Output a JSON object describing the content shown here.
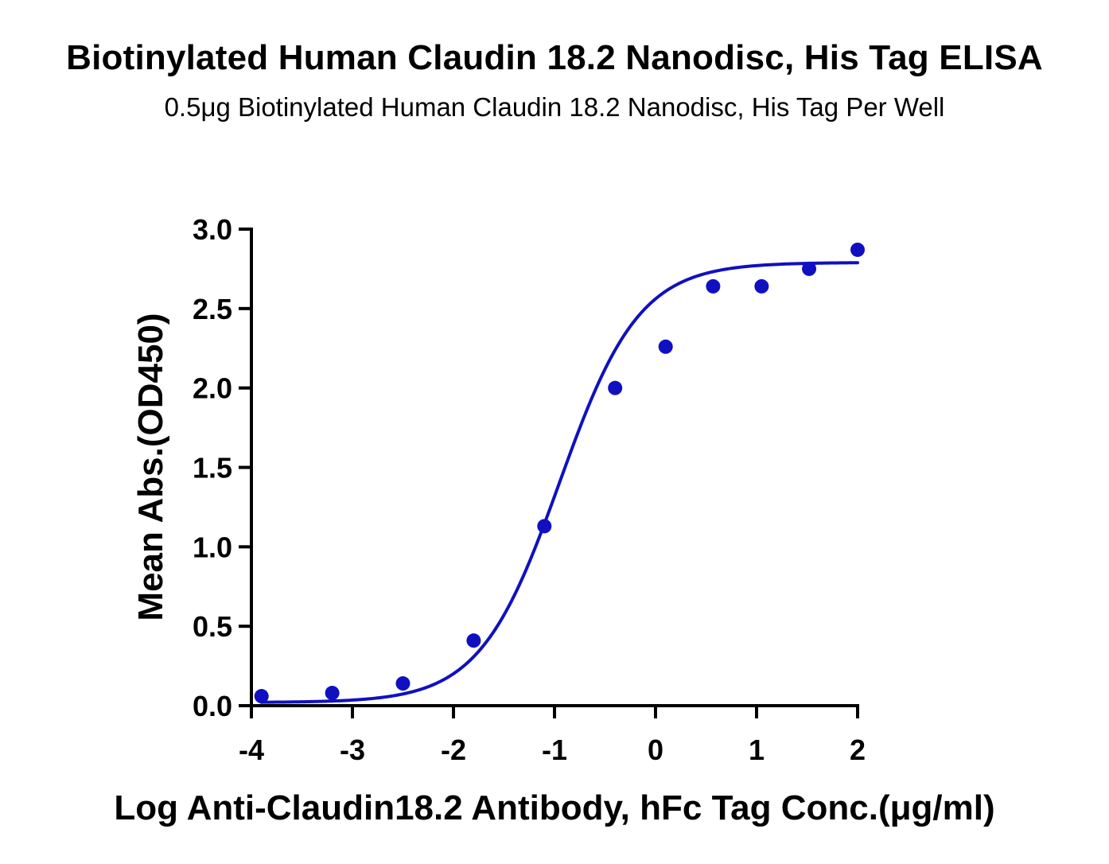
{
  "chart_data": {
    "type": "scatter",
    "title": "Biotinylated Human Claudin 18.2 Nanodisc, His Tag ELISA",
    "subtitle": "0.5μg Biotinylated Human Claudin 18.2 Nanodisc, His Tag Per Well",
    "xlabel": "Log Anti-Claudin18.2 Antibody, hFc Tag Conc.(μg/ml)",
    "ylabel": "Mean Abs.(OD450)",
    "xlim": [
      -4,
      2
    ],
    "ylim": [
      0,
      3
    ],
    "xticks": [
      -4,
      -3,
      -2,
      -1,
      0,
      1,
      2
    ],
    "xtick_labels": [
      "-4",
      "-3",
      "-2",
      "-1",
      "0",
      "1",
      "2"
    ],
    "yticks": [
      0,
      0.5,
      1,
      1.5,
      2,
      2.5,
      3
    ],
    "ytick_labels": [
      "0.0",
      "0.5",
      "1.0",
      "1.5",
      "2.0",
      "2.5",
      "3.0"
    ],
    "grid": false,
    "legend": "none",
    "series": [
      {
        "color": "#1010c0",
        "points": [
          {
            "x": -3.9,
            "y": 0.06
          },
          {
            "x": -3.2,
            "y": 0.08
          },
          {
            "x": -2.5,
            "y": 0.14
          },
          {
            "x": -1.8,
            "y": 0.41
          },
          {
            "x": -1.1,
            "y": 1.13
          },
          {
            "x": -0.4,
            "y": 2.0
          },
          {
            "x": 0.1,
            "y": 2.26
          },
          {
            "x": 0.57,
            "y": 2.64
          },
          {
            "x": 1.05,
            "y": 2.64
          },
          {
            "x": 1.52,
            "y": 2.75
          },
          {
            "x": 2.0,
            "y": 2.87
          }
        ],
        "fit": {
          "model": "4PL",
          "bottom": 0.02,
          "top": 2.79,
          "logEC50": -0.95,
          "hill": 1.1
        }
      }
    ]
  }
}
